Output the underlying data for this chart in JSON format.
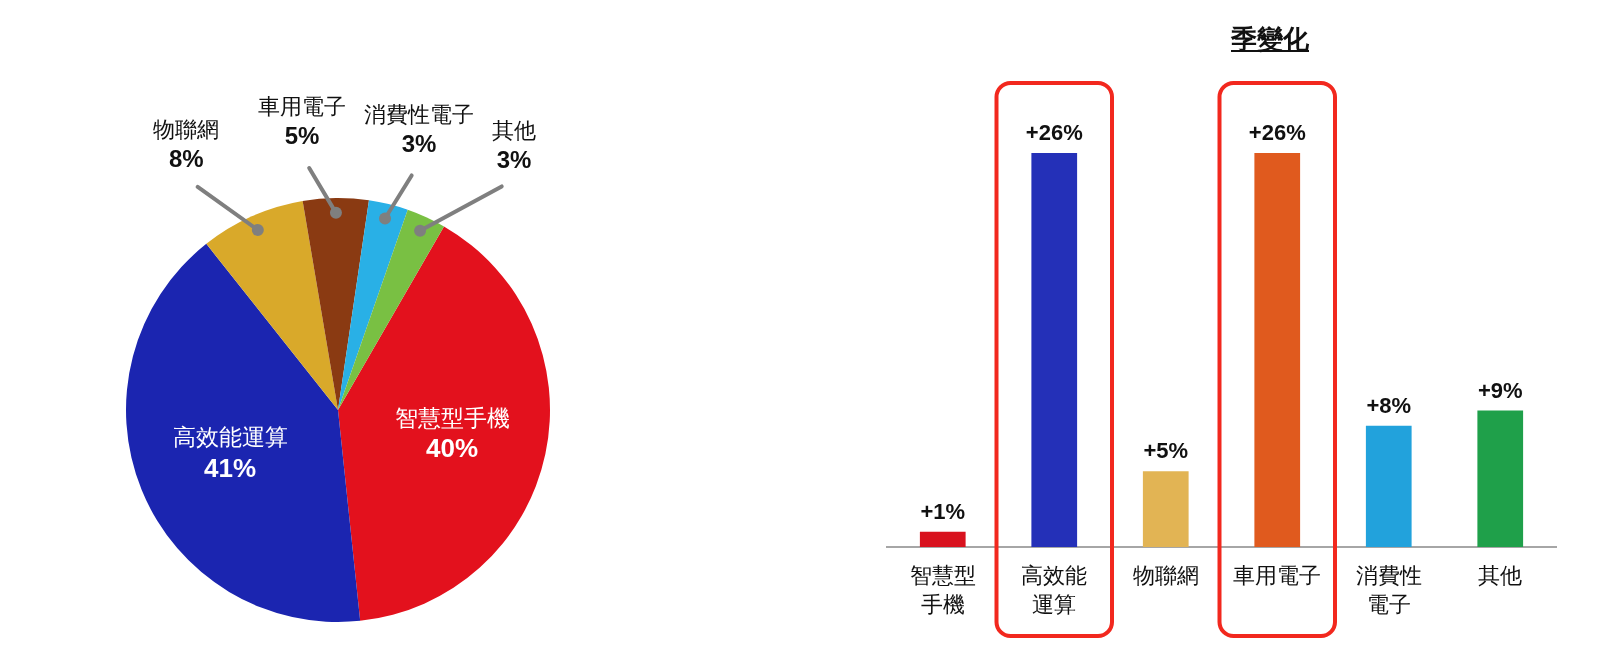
{
  "chart_data": [
    {
      "type": "pie",
      "categories": [
        "智慧型手機",
        "高效能運算",
        "物聯網",
        "車用電子",
        "消費性電子",
        "其他"
      ],
      "values": [
        40,
        41,
        8,
        5,
        3,
        3
      ],
      "colors": [
        "#e3111d",
        "#1b25b0",
        "#d9a92a",
        "#8a3a12",
        "#29b0e6",
        "#79c043"
      ],
      "value_labels": [
        "40%",
        "41%",
        "8%",
        "5%",
        "3%",
        "3%"
      ]
    },
    {
      "type": "bar",
      "title": "季變化",
      "categories": [
        "智慧型手機",
        "高效能運算",
        "物聯網",
        "車用電子",
        "消費性電子",
        "其他"
      ],
      "values": [
        1,
        26,
        5,
        26,
        8,
        9
      ],
      "colors": [
        "#d8121e",
        "#2430b8",
        "#e2b454",
        "#e05a1e",
        "#22a2dc",
        "#1fa04a"
      ],
      "value_labels": [
        "+1%",
        "+26%",
        "+5%",
        "+26%",
        "+8%",
        "+9%"
      ],
      "tick_labels": "x"
    }
  ]
}
